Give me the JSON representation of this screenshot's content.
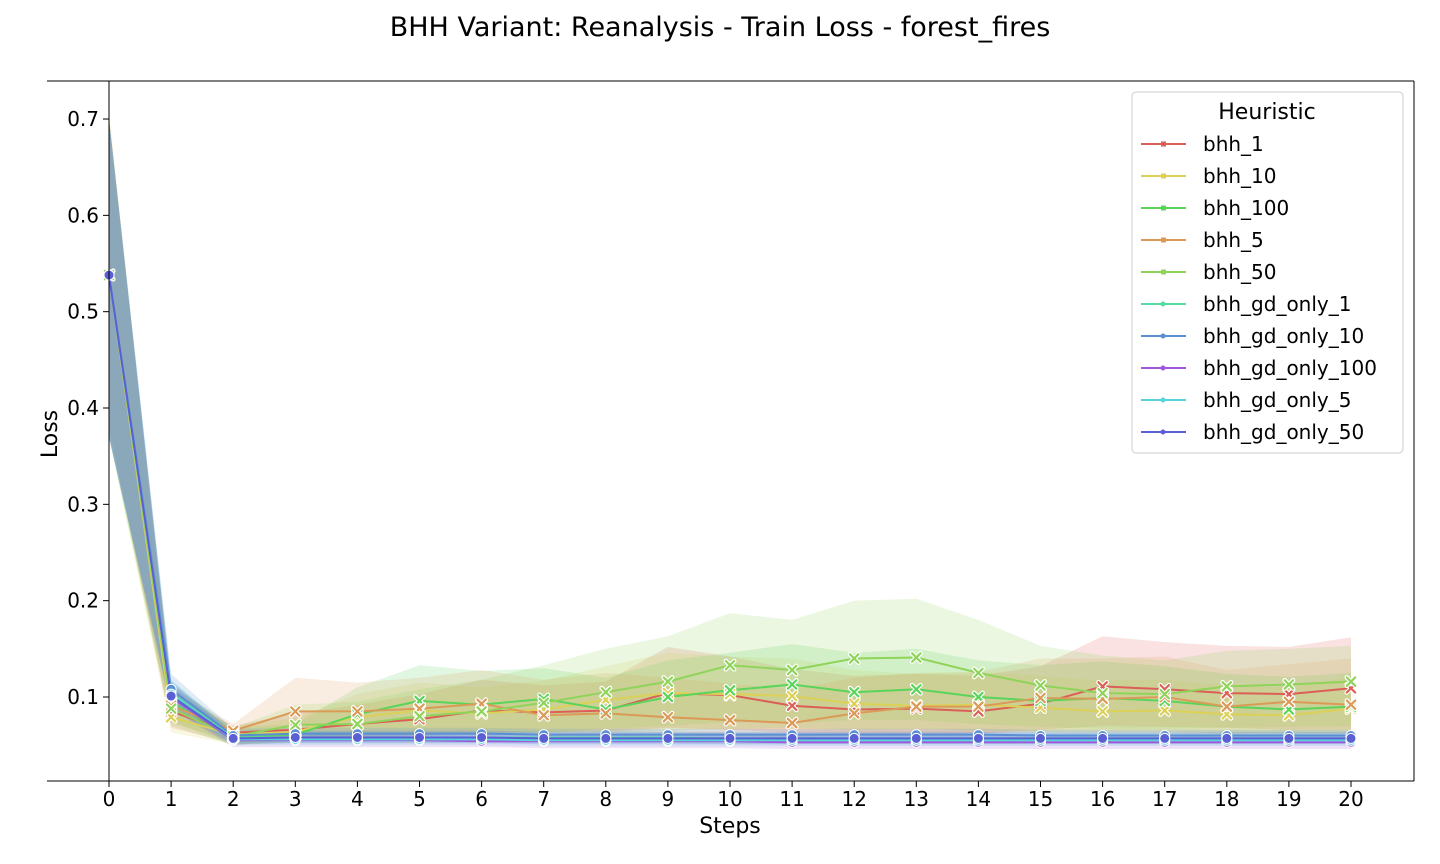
{
  "chart_data": {
    "type": "line",
    "title": "BHH Variant: Reanalysis - Train Loss - forest_fires",
    "xlabel": "Steps",
    "ylabel": "Loss",
    "xlim": [
      -1,
      21
    ],
    "ylim": [
      -0.01,
      0.74
    ],
    "x": [
      0,
      1,
      2,
      3,
      4,
      5,
      6,
      7,
      8,
      9,
      10,
      11,
      12,
      13,
      14,
      15,
      16,
      17,
      18,
      19,
      20
    ],
    "yticks": [
      0.1,
      0.2,
      0.3,
      0.4,
      0.5,
      0.6,
      0.7
    ],
    "ytick_labels": [
      "0.1",
      "0.2",
      "0.3",
      "0.4",
      "0.5",
      "0.6",
      "0.7"
    ],
    "grid": false,
    "legend": {
      "title": "Heuristic",
      "position": "top-right"
    },
    "series": [
      {
        "name": "bhh_1",
        "color": "#db5f57",
        "marker": "x",
        "values": [
          0.538,
          0.085,
          0.063,
          0.066,
          0.072,
          0.077,
          0.086,
          0.084,
          0.086,
          0.104,
          0.102,
          0.091,
          0.087,
          0.088,
          0.085,
          0.093,
          0.111,
          0.108,
          0.104,
          0.103,
          0.109
        ],
        "lower": [
          0.38,
          0.068,
          0.052,
          0.055,
          0.058,
          0.06,
          0.063,
          0.063,
          0.064,
          0.068,
          0.066,
          0.063,
          0.062,
          0.062,
          0.062,
          0.066,
          0.07,
          0.069,
          0.068,
          0.066,
          0.066
        ],
        "upper": [
          0.7,
          0.105,
          0.07,
          0.083,
          0.092,
          0.103,
          0.118,
          0.112,
          0.116,
          0.152,
          0.142,
          0.129,
          0.122,
          0.124,
          0.122,
          0.132,
          0.163,
          0.157,
          0.153,
          0.152,
          0.162
        ]
      },
      {
        "name": "bhh_10",
        "color": "#dbd157",
        "marker": "x",
        "values": [
          0.538,
          0.079,
          0.061,
          0.064,
          0.079,
          0.086,
          0.083,
          0.087,
          0.097,
          0.104,
          0.103,
          0.101,
          0.093,
          0.091,
          0.092,
          0.089,
          0.085,
          0.086,
          0.082,
          0.081,
          0.088
        ],
        "lower": [
          0.37,
          0.063,
          0.051,
          0.053,
          0.06,
          0.063,
          0.062,
          0.063,
          0.066,
          0.068,
          0.066,
          0.066,
          0.064,
          0.063,
          0.063,
          0.063,
          0.062,
          0.062,
          0.061,
          0.061,
          0.062
        ],
        "upper": [
          0.71,
          0.1,
          0.07,
          0.078,
          0.103,
          0.115,
          0.11,
          0.117,
          0.132,
          0.146,
          0.142,
          0.14,
          0.128,
          0.124,
          0.126,
          0.122,
          0.117,
          0.118,
          0.112,
          0.11,
          0.121
        ]
      },
      {
        "name": "bhh_100",
        "color": "#5ad45a",
        "marker": "x",
        "values": [
          0.538,
          0.094,
          0.059,
          0.061,
          0.082,
          0.096,
          0.092,
          0.098,
          0.087,
          0.1,
          0.107,
          0.113,
          0.105,
          0.108,
          0.1,
          0.096,
          0.099,
          0.096,
          0.09,
          0.087,
          0.09
        ],
        "lower": [
          0.37,
          0.075,
          0.05,
          0.053,
          0.06,
          0.064,
          0.063,
          0.064,
          0.063,
          0.065,
          0.067,
          0.068,
          0.066,
          0.067,
          0.065,
          0.064,
          0.064,
          0.064,
          0.063,
          0.062,
          0.063
        ],
        "upper": [
          0.7,
          0.113,
          0.068,
          0.072,
          0.11,
          0.133,
          0.127,
          0.13,
          0.12,
          0.138,
          0.146,
          0.155,
          0.146,
          0.15,
          0.138,
          0.133,
          0.137,
          0.132,
          0.124,
          0.121,
          0.125
        ]
      },
      {
        "name": "bhh_5",
        "color": "#db9a57",
        "marker": "x",
        "values": [
          0.538,
          0.091,
          0.065,
          0.085,
          0.085,
          0.088,
          0.093,
          0.081,
          0.083,
          0.079,
          0.076,
          0.073,
          0.083,
          0.09,
          0.09,
          0.099,
          0.098,
          0.1,
          0.09,
          0.095,
          0.092
        ],
        "lower": [
          0.38,
          0.073,
          0.054,
          0.06,
          0.06,
          0.061,
          0.063,
          0.06,
          0.061,
          0.06,
          0.059,
          0.058,
          0.061,
          0.062,
          0.062,
          0.064,
          0.064,
          0.064,
          0.062,
          0.063,
          0.062
        ],
        "upper": [
          0.7,
          0.11,
          0.072,
          0.12,
          0.115,
          0.12,
          0.128,
          0.118,
          0.125,
          0.12,
          0.114,
          0.108,
          0.12,
          0.125,
          0.126,
          0.14,
          0.14,
          0.142,
          0.128,
          0.134,
          0.14
        ]
      },
      {
        "name": "bhh_50",
        "color": "#8fd45a",
        "marker": "x",
        "values": [
          0.538,
          0.088,
          0.059,
          0.071,
          0.072,
          0.08,
          0.085,
          0.094,
          0.105,
          0.116,
          0.133,
          0.128,
          0.14,
          0.141,
          0.125,
          0.112,
          0.104,
          0.103,
          0.111,
          0.113,
          0.116
        ],
        "lower": [
          0.37,
          0.07,
          0.05,
          0.055,
          0.056,
          0.059,
          0.061,
          0.063,
          0.067,
          0.07,
          0.074,
          0.073,
          0.076,
          0.076,
          0.072,
          0.069,
          0.067,
          0.067,
          0.068,
          0.069,
          0.07
        ],
        "upper": [
          0.7,
          0.108,
          0.068,
          0.092,
          0.095,
          0.108,
          0.118,
          0.133,
          0.15,
          0.163,
          0.187,
          0.18,
          0.2,
          0.202,
          0.18,
          0.153,
          0.143,
          0.138,
          0.148,
          0.15,
          0.153
        ]
      },
      {
        "name": "bhh_gd_only_1",
        "color": "#57dba4",
        "marker": "o",
        "values": [
          0.538,
          0.104,
          0.058,
          0.058,
          0.058,
          0.058,
          0.058,
          0.058,
          0.058,
          0.058,
          0.057,
          0.057,
          0.057,
          0.057,
          0.057,
          0.057,
          0.057,
          0.057,
          0.057,
          0.057,
          0.057
        ],
        "lower": [
          0.37,
          0.09,
          0.052,
          0.052,
          0.052,
          0.052,
          0.052,
          0.052,
          0.052,
          0.052,
          0.051,
          0.051,
          0.051,
          0.051,
          0.051,
          0.051,
          0.051,
          0.051,
          0.051,
          0.051,
          0.051
        ],
        "upper": [
          0.7,
          0.118,
          0.064,
          0.064,
          0.064,
          0.064,
          0.064,
          0.064,
          0.064,
          0.064,
          0.063,
          0.063,
          0.063,
          0.063,
          0.063,
          0.063,
          0.063,
          0.063,
          0.063,
          0.063,
          0.063
        ]
      },
      {
        "name": "bhh_gd_only_10",
        "color": "#5a8fd4",
        "marker": "o",
        "values": [
          0.538,
          0.108,
          0.06,
          0.062,
          0.062,
          0.062,
          0.062,
          0.061,
          0.061,
          0.061,
          0.061,
          0.061,
          0.061,
          0.061,
          0.061,
          0.06,
          0.06,
          0.06,
          0.06,
          0.06,
          0.06
        ],
        "lower": [
          0.37,
          0.094,
          0.054,
          0.056,
          0.056,
          0.056,
          0.056,
          0.055,
          0.055,
          0.055,
          0.055,
          0.055,
          0.055,
          0.055,
          0.055,
          0.054,
          0.054,
          0.054,
          0.054,
          0.054,
          0.054
        ],
        "upper": [
          0.7,
          0.124,
          0.067,
          0.068,
          0.068,
          0.068,
          0.068,
          0.067,
          0.067,
          0.067,
          0.067,
          0.067,
          0.067,
          0.067,
          0.067,
          0.066,
          0.066,
          0.066,
          0.066,
          0.066,
          0.066
        ]
      },
      {
        "name": "bhh_gd_only_100",
        "color": "#a057db",
        "marker": "o",
        "values": [
          0.538,
          0.1,
          0.055,
          0.055,
          0.055,
          0.055,
          0.054,
          0.054,
          0.054,
          0.054,
          0.054,
          0.053,
          0.053,
          0.053,
          0.053,
          0.053,
          0.053,
          0.053,
          0.053,
          0.053,
          0.053
        ],
        "lower": [
          0.37,
          0.087,
          0.048,
          0.048,
          0.048,
          0.048,
          0.048,
          0.047,
          0.047,
          0.047,
          0.047,
          0.046,
          0.046,
          0.046,
          0.046,
          0.046,
          0.046,
          0.046,
          0.046,
          0.046,
          0.046
        ],
        "upper": [
          0.7,
          0.114,
          0.062,
          0.062,
          0.062,
          0.062,
          0.061,
          0.061,
          0.061,
          0.061,
          0.061,
          0.06,
          0.06,
          0.06,
          0.06,
          0.06,
          0.06,
          0.06,
          0.06,
          0.06,
          0.06
        ]
      },
      {
        "name": "bhh_gd_only_5",
        "color": "#57d3db",
        "marker": "o",
        "values": [
          0.538,
          0.103,
          0.056,
          0.056,
          0.056,
          0.056,
          0.056,
          0.055,
          0.055,
          0.055,
          0.055,
          0.055,
          0.055,
          0.055,
          0.055,
          0.055,
          0.055,
          0.055,
          0.055,
          0.055,
          0.055
        ],
        "lower": [
          0.37,
          0.089,
          0.05,
          0.05,
          0.05,
          0.05,
          0.05,
          0.049,
          0.049,
          0.049,
          0.049,
          0.049,
          0.049,
          0.049,
          0.049,
          0.049,
          0.049,
          0.049,
          0.049,
          0.049,
          0.049
        ],
        "upper": [
          0.7,
          0.117,
          0.063,
          0.063,
          0.063,
          0.063,
          0.063,
          0.062,
          0.062,
          0.062,
          0.062,
          0.062,
          0.062,
          0.062,
          0.062,
          0.062,
          0.062,
          0.062,
          0.062,
          0.062,
          0.062
        ]
      },
      {
        "name": "bhh_gd_only_50",
        "color": "#5a5fd4",
        "marker": "o",
        "values": [
          0.538,
          0.101,
          0.057,
          0.058,
          0.058,
          0.058,
          0.058,
          0.057,
          0.057,
          0.057,
          0.057,
          0.057,
          0.057,
          0.057,
          0.057,
          0.057,
          0.057,
          0.057,
          0.057,
          0.057,
          0.057
        ],
        "lower": [
          0.37,
          0.087,
          0.051,
          0.052,
          0.052,
          0.052,
          0.052,
          0.051,
          0.051,
          0.051,
          0.051,
          0.051,
          0.051,
          0.051,
          0.051,
          0.051,
          0.051,
          0.051,
          0.051,
          0.051,
          0.051
        ],
        "upper": [
          0.7,
          0.116,
          0.064,
          0.065,
          0.065,
          0.065,
          0.065,
          0.064,
          0.064,
          0.064,
          0.064,
          0.064,
          0.064,
          0.064,
          0.064,
          0.064,
          0.064,
          0.064,
          0.064,
          0.064,
          0.064
        ]
      }
    ]
  }
}
